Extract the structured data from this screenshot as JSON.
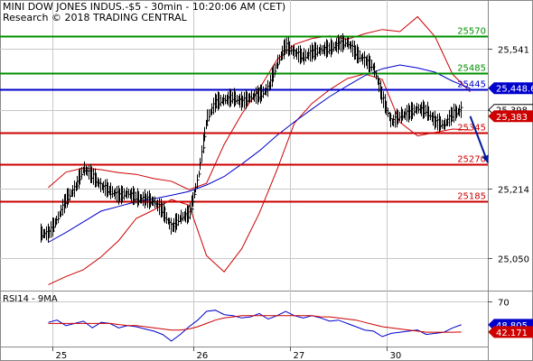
{
  "header": {
    "title": "MINI DOW JONES INDUS.-$5 - 30min - 10:20:06 AM (CET)",
    "subtitle": "Research © 2018 TRADING CENTRAL"
  },
  "rsi_title": "RSI14 - 9MA",
  "colors": {
    "resistance": "#009000",
    "pivot": "#0000cc",
    "support": "#cc0000",
    "price": "#000000",
    "bollinger": "#cc0000",
    "ma": "#0000cc",
    "rsi": "#0000cc",
    "rsi_ma": "#cc0000",
    "arrow": "#001a99",
    "grid": "#c8c8c8"
  },
  "chart_data": [
    {
      "type": "candlestick",
      "title": "MINI DOW JONES INDUS.-$5 - 30min - 10:20:06 AM (CET)",
      "ylim": [
        24975,
        25655
      ],
      "y_ticks": [
        25050,
        25214,
        25398,
        25541
      ],
      "y_tick_labels": [
        "25,050",
        "25,214",
        "25,398",
        "25,541"
      ],
      "x_ticks": [
        "25",
        "26",
        "27",
        "30"
      ],
      "x_ticks_pos": [
        0.5,
        16.5,
        27.5,
        38.5
      ],
      "x_range": [
        -5.5,
        50
      ],
      "levels": [
        {
          "value": 25570,
          "label": "25570",
          "role": "resistance"
        },
        {
          "value": 25485,
          "label": "25485",
          "role": "resistance"
        },
        {
          "value": 25445,
          "label": "25445",
          "role": "pivot"
        },
        {
          "value": 25345,
          "label": "25345",
          "role": "support"
        },
        {
          "value": 25270,
          "label": "25270",
          "role": "support"
        },
        {
          "value": 25185,
          "label": "25185",
          "role": "support"
        }
      ],
      "price_tags": [
        {
          "label": "25,448.6",
          "value": 25448.6,
          "style": "blue"
        },
        {
          "label": "25,398",
          "value": 25398,
          "style": "white"
        },
        {
          "label": "25,383",
          "value": 25383,
          "style": "red"
        }
      ],
      "price": [
        25108,
        25142,
        25188,
        25214,
        25261,
        25243,
        25219,
        25208,
        25196,
        25203,
        25191,
        25188,
        25183,
        25161,
        25121,
        25146,
        25153,
        25236,
        25375,
        25416,
        25421,
        25426,
        25416,
        25428,
        25432,
        25448,
        25506,
        25548,
        25531,
        25521,
        25532,
        25538,
        25541,
        25551,
        25556,
        25529,
        25513,
        25497,
        25425,
        25368,
        25384,
        25390,
        25401,
        25395,
        25370,
        25362,
        25388,
        25398
      ],
      "ma": [
        25088,
        25111,
        25136,
        25161,
        25172,
        25183,
        25190,
        25198,
        25207,
        25222,
        25242,
        25271,
        25302,
        25338,
        25370,
        25400,
        25429,
        25454,
        25478,
        25494,
        25503,
        25496,
        25486,
        25465,
        25448
      ],
      "ma_x": [
        0,
        2,
        4,
        6,
        8,
        10,
        12,
        14,
        16,
        18,
        20,
        22,
        24,
        26,
        28,
        30,
        32,
        34,
        36,
        38,
        40,
        42,
        44,
        46,
        48
      ],
      "bollinger_upper": [
        25216,
        25252,
        25262,
        25258,
        25251,
        25247,
        25237,
        25231,
        25211,
        25226,
        25317,
        25388,
        25447,
        25515,
        25551,
        25565,
        25571,
        25563,
        25576,
        25586,
        25581,
        25616,
        25569,
        25481,
        25440
      ],
      "bollinger_lower": [
        24989,
        25008,
        25024,
        25054,
        25092,
        25144,
        25164,
        25188,
        25175,
        25057,
        25019,
        25073,
        25156,
        25257,
        25367,
        25413,
        25445,
        25471,
        25482,
        25469,
        25369,
        25337,
        25345,
        25353,
        25351
      ],
      "arrow": {
        "from": [
          48,
          25383
        ],
        "to": [
          50,
          25274
        ]
      }
    },
    {
      "type": "line",
      "title": "RSI14 - 9MA",
      "ylim": [
        29,
        79
      ],
      "y_ticks": [
        70
      ],
      "y_tick_labels": [
        "70"
      ],
      "value_tags": [
        {
          "label": "48.805",
          "value": 48.8,
          "style": "blue"
        },
        {
          "label": "42.171",
          "value": 42.2,
          "style": "red"
        }
      ],
      "series": [
        {
          "role": "rsi",
          "values": [
            51,
            53,
            48,
            50,
            52,
            46,
            51,
            50,
            46,
            48,
            47,
            45,
            43,
            40,
            34,
            40,
            47,
            53,
            61,
            62,
            58,
            57,
            55,
            56,
            59,
            54,
            57,
            61,
            57,
            55,
            57,
            55,
            52,
            53,
            50,
            47,
            44,
            43,
            38,
            41,
            42,
            43,
            44,
            40,
            41,
            42,
            46,
            48.8
          ]
        },
        {
          "role": "rsi_ma",
          "values": [
            50,
            50,
            50,
            50,
            50,
            50,
            50,
            50,
            49,
            48,
            48,
            47,
            46,
            45,
            44,
            44,
            45,
            47,
            50,
            53,
            55,
            56,
            57,
            57,
            57,
            57,
            57,
            57,
            57,
            57,
            57,
            56,
            56,
            55,
            54,
            53,
            51,
            49,
            47,
            46,
            45,
            44,
            43,
            42,
            42,
            42,
            42,
            42.2
          ]
        }
      ]
    }
  ]
}
